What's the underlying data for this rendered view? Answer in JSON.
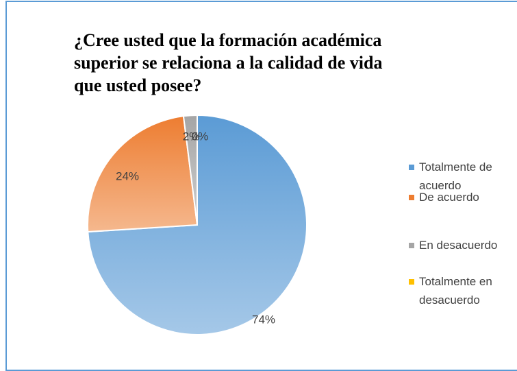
{
  "chart_data": {
    "type": "pie",
    "title": "¿Cree usted que la formación académica superior se relaciona a la calidad de vida que usted posee?",
    "categories": [
      "Totalmente de acuerdo",
      "De acuerdo",
      "En desacuerdo",
      "Totalmente en desacuerdo"
    ],
    "values": [
      74,
      24,
      2,
      0
    ],
    "value_labels": [
      "74%",
      "24%",
      "2%",
      "0%"
    ],
    "colors": [
      "#5b9bd5",
      "#ed7d31",
      "#a5a5a5",
      "#ffc000"
    ],
    "legend": "right"
  }
}
